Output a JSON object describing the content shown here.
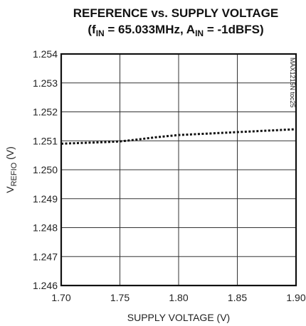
{
  "chart_data": {
    "type": "line",
    "title_line1": "REFERENCE vs. SUPPLY VOLTAGE",
    "title_line2_parts": [
      "(f",
      "IN",
      " = 65.033MHz, A",
      "IN",
      " = -1dBFS)"
    ],
    "xlabel": "SUPPLY VOLTAGE (V)",
    "ylabel_parts": [
      "V",
      "REFIO",
      " (V)"
    ],
    "figure_code": "MAX1215N toc25",
    "xlim": [
      1.7,
      1.9
    ],
    "ylim": [
      1.246,
      1.254
    ],
    "x_ticks": [
      1.7,
      1.75,
      1.8,
      1.85,
      1.9
    ],
    "x_tick_labels": [
      "1.70",
      "1.75",
      "1.80",
      "1.85",
      "1.90"
    ],
    "y_ticks": [
      1.246,
      1.247,
      1.248,
      1.249,
      1.25,
      1.251,
      1.252,
      1.253,
      1.254
    ],
    "y_tick_labels": [
      "1.246",
      "1.247",
      "1.248",
      "1.249",
      "1.250",
      "1.251",
      "1.252",
      "1.253",
      "1.254"
    ],
    "grid": true,
    "series": [
      {
        "style": "dotted",
        "color": "#111111",
        "x": [
          1.7,
          1.72,
          1.74,
          1.75,
          1.76,
          1.78,
          1.8,
          1.82,
          1.85,
          1.88,
          1.9
        ],
        "y": [
          1.2509,
          1.25093,
          1.25096,
          1.25098,
          1.25102,
          1.25112,
          1.2512,
          1.25124,
          1.2513,
          1.25136,
          1.2514
        ]
      }
    ]
  }
}
